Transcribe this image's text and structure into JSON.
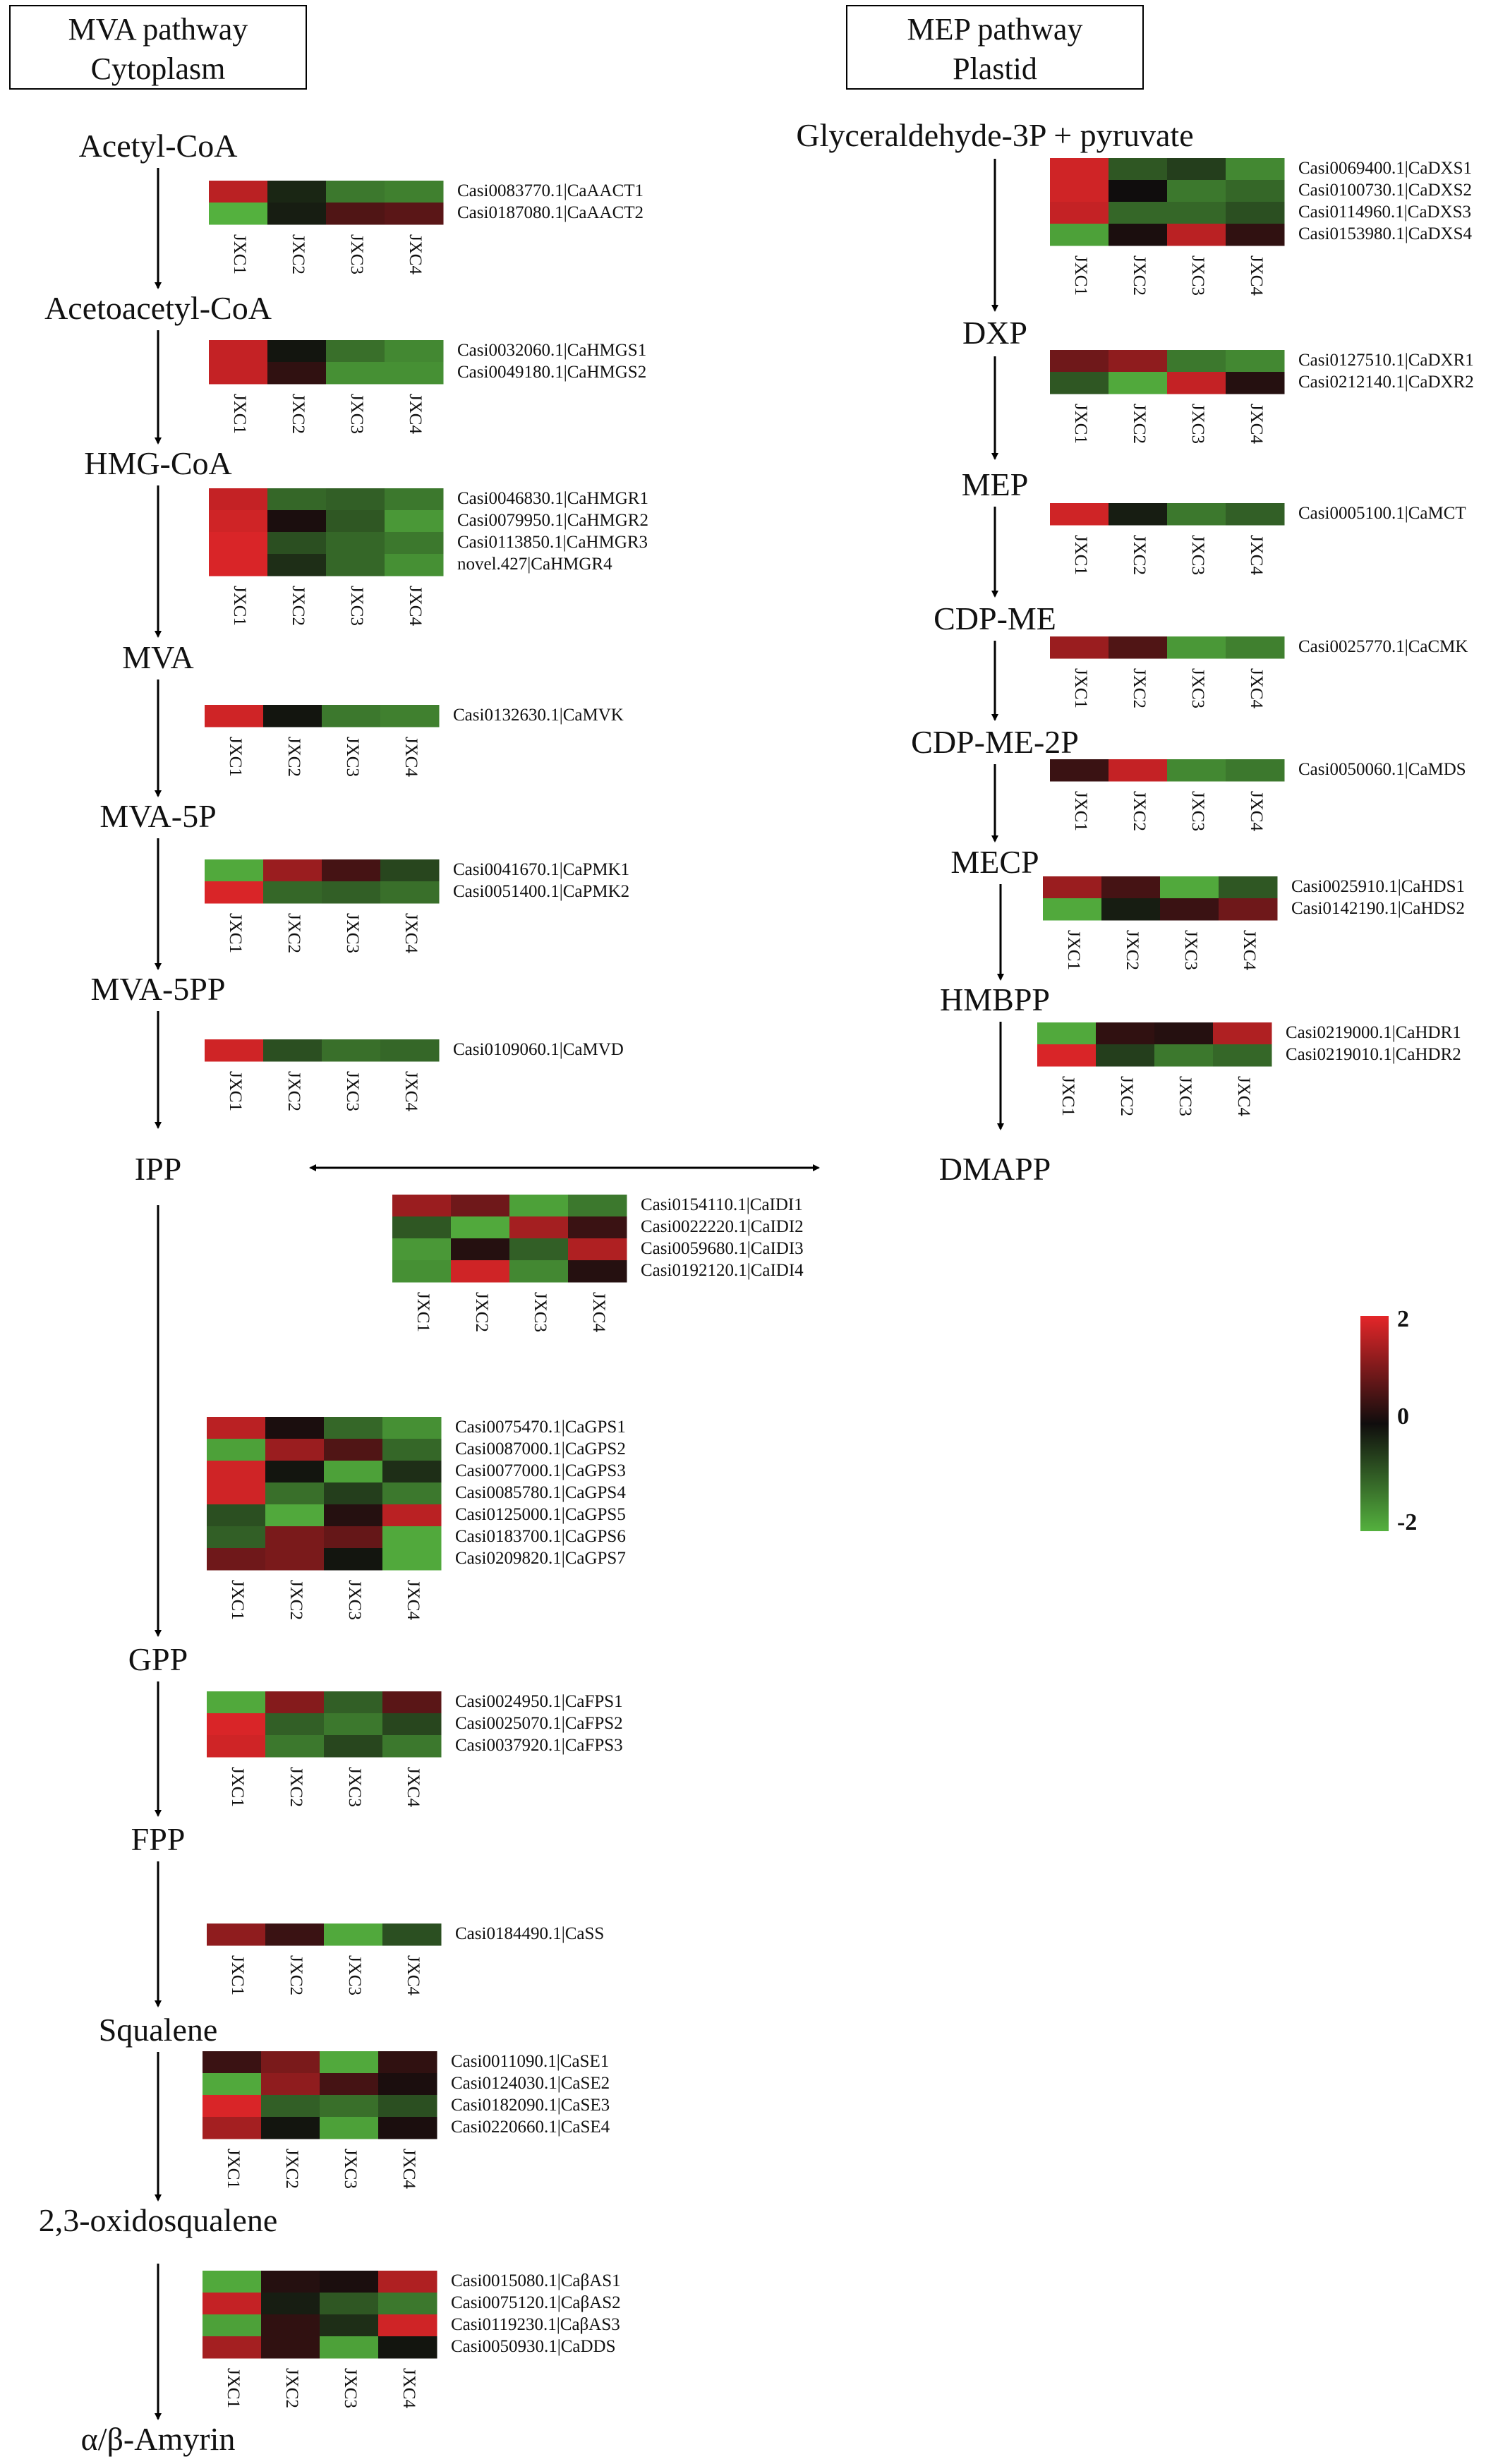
{
  "headers": {
    "mva": {
      "line1": "MVA pathway",
      "line2": "Cytoplasm"
    },
    "mep": {
      "line1": "MEP pathway",
      "line2": "Plastid"
    }
  },
  "samples": [
    "JXC1",
    "JXC2",
    "JXC3",
    "JXC4"
  ],
  "legend": {
    "max": "2",
    "mid": "0",
    "min": "-2"
  },
  "colors": {
    "high": "#e42629",
    "mid": "#100d0d",
    "low": "#54b13e",
    "arrow": "#000000"
  },
  "mva_metabolites": [
    "Acetyl-CoA",
    "Acetoacetyl-CoA",
    "HMG-CoA",
    "MVA",
    "MVA-5P",
    "MVA-5PP",
    "IPP",
    "GPP",
    "FPP",
    "Squalene",
    "2,3-oxidosqualene",
    "α/β-Amyrin"
  ],
  "mep_metabolites": [
    "Glyceraldehyde-3P + pyruvate",
    "DXP",
    "MEP",
    "CDP-ME",
    "CDP-ME-2P",
    "MECP",
    "HMBPP",
    "DMAPP"
  ],
  "heatmaps": [
    {
      "id": "aact",
      "genes": [
        "Casi0083770.1|CaAACT1",
        "Casi0187080.1|CaAACT2"
      ],
      "values": [
        [
          1.6,
          -0.3,
          -1.3,
          -1.4
        ],
        [
          -2.0,
          -0.2,
          0.6,
          0.7
        ]
      ]
    },
    {
      "id": "hmgs",
      "genes": [
        "Casi0032060.1|CaHMGS1",
        "Casi0049180.1|CaHMGS2"
      ],
      "values": [
        [
          1.7,
          -0.1,
          -1.2,
          -1.5
        ],
        [
          1.7,
          0.3,
          -1.6,
          -1.6
        ]
      ]
    },
    {
      "id": "hmgr",
      "genes": [
        "Casi0046830.1|CaHMGR1",
        "Casi0079950.1|CaHMGR2",
        "Casi0113850.1|CaHMGR3",
        "novel.427|CaHMGR4"
      ],
      "values": [
        [
          1.7,
          -1.1,
          -1.0,
          -1.3
        ],
        [
          1.8,
          0.1,
          -0.9,
          -1.7
        ],
        [
          1.9,
          -0.8,
          -1.1,
          -1.3
        ],
        [
          1.9,
          -0.4,
          -1.1,
          -1.6
        ]
      ]
    },
    {
      "id": "mvk",
      "genes": [
        "Casi0132630.1|CaMVK"
      ],
      "values": [
        [
          1.8,
          -0.1,
          -1.3,
          -1.4
        ]
      ]
    },
    {
      "id": "pmk",
      "genes": [
        "Casi0041670.1|CaPMK1",
        "Casi0051400.1|CaPMK2"
      ],
      "values": [
        [
          -1.9,
          1.3,
          0.5,
          -0.7
        ],
        [
          1.9,
          -1.1,
          -1.0,
          -1.2
        ]
      ]
    },
    {
      "id": "mvd",
      "genes": [
        "Casi0109060.1|CaMVD"
      ],
      "values": [
        [
          1.8,
          -0.8,
          -1.2,
          -1.1
        ]
      ]
    },
    {
      "id": "idi",
      "genes": [
        "Casi0154110.1|CaIDI1",
        "Casi0022220.1|CaIDI2",
        "Casi0059680.1|CaIDI3",
        "Casi0192120.1|CaIDI4"
      ],
      "values": [
        [
          1.3,
          0.9,
          -1.8,
          -1.3
        ],
        [
          -0.9,
          -1.9,
          1.4,
          0.4
        ],
        [
          -1.7,
          0.2,
          -1.0,
          1.5
        ],
        [
          -1.6,
          1.8,
          -1.5,
          0.2
        ]
      ]
    },
    {
      "id": "gps",
      "genes": [
        "Casi0075470.1|CaGPS1",
        "Casi0087000.1|CaGPS2",
        "Casi0077000.1|CaGPS3",
        "Casi0085780.1|CaGPS4",
        "Casi0125000.1|CaGPS5",
        "Casi0183700.1|CaGPS6",
        "Casi0209820.1|CaGPS7"
      ],
      "values": [
        [
          1.6,
          0.1,
          -1.1,
          -1.6
        ],
        [
          -1.8,
          1.3,
          0.6,
          -1.1
        ],
        [
          1.8,
          -0.1,
          -1.8,
          -0.4
        ],
        [
          1.8,
          -1.2,
          -0.6,
          -1.3
        ],
        [
          -0.8,
          -1.9,
          0.2,
          1.6
        ],
        [
          -1.0,
          1.0,
          0.8,
          -1.9
        ],
        [
          0.9,
          1.0,
          -0.1,
          -1.9
        ]
      ]
    },
    {
      "id": "fps",
      "genes": [
        "Casi0024950.1|CaFPS1",
        "Casi0025070.1|CaFPS2",
        "Casi0037920.1|CaFPS3"
      ],
      "values": [
        [
          -1.9,
          1.1,
          -1.0,
          0.7
        ],
        [
          1.9,
          -1.0,
          -1.3,
          -0.7
        ],
        [
          1.8,
          -1.3,
          -0.7,
          -1.3
        ]
      ]
    },
    {
      "id": "ss",
      "genes": [
        "Casi0184490.1|CaSS"
      ],
      "values": [
        [
          1.2,
          0.4,
          -1.9,
          -0.8
        ]
      ]
    },
    {
      "id": "se",
      "genes": [
        "Casi0011090.1|CaSE1",
        "Casi0124030.1|CaSE2",
        "Casi0182090.1|CaSE3",
        "Casi0220660.1|CaSE4"
      ],
      "values": [
        [
          0.4,
          1.0,
          -1.9,
          0.3
        ],
        [
          -1.9,
          1.2,
          0.5,
          0.1
        ],
        [
          1.9,
          -1.0,
          -1.2,
          -0.8
        ],
        [
          1.4,
          -0.1,
          -1.8,
          0.1
        ]
      ]
    },
    {
      "id": "as",
      "genes": [
        "Casi0015080.1|CaβAS1",
        "Casi0075120.1|CaβAS2",
        "Casi0119230.1|CaβAS3",
        "Casi0050930.1|CaDDS"
      ],
      "values": [
        [
          -1.9,
          0.2,
          0.1,
          1.5
        ],
        [
          1.7,
          -0.2,
          -0.9,
          -1.3
        ],
        [
          -1.8,
          0.3,
          -0.4,
          1.8
        ],
        [
          1.4,
          0.3,
          -1.8,
          -0.1
        ]
      ]
    },
    {
      "id": "dxs",
      "genes": [
        "Casi0069400.1|CaDXS1",
        "Casi0100730.1|CaDXS2",
        "Casi0114960.1|CaDXS3",
        "Casi0153980.1|CaDXS4"
      ],
      "values": [
        [
          1.8,
          -0.9,
          -0.6,
          -1.5
        ],
        [
          1.8,
          0.0,
          -1.3,
          -1.1
        ],
        [
          1.7,
          -1.1,
          -1.1,
          -0.8
        ],
        [
          -1.8,
          0.1,
          1.6,
          0.3
        ]
      ]
    },
    {
      "id": "dxr",
      "genes": [
        "Casi0127510.1|CaDXR1",
        "Casi0212140.1|CaDXR2"
      ],
      "values": [
        [
          0.9,
          1.2,
          -1.3,
          -1.5
        ],
        [
          -0.9,
          -1.9,
          1.7,
          0.2
        ]
      ]
    },
    {
      "id": "mct",
      "genes": [
        "Casi0005100.1|CaMCT"
      ],
      "values": [
        [
          1.8,
          -0.2,
          -1.3,
          -1.0
        ]
      ]
    },
    {
      "id": "cmk",
      "genes": [
        "Casi0025770.1|CaCMK"
      ],
      "values": [
        [
          1.3,
          0.6,
          -1.7,
          -1.4
        ]
      ]
    },
    {
      "id": "mds",
      "genes": [
        "Casi0050060.1|CaMDS"
      ],
      "values": [
        [
          0.4,
          1.7,
          -1.5,
          -1.3
        ]
      ]
    },
    {
      "id": "hds",
      "genes": [
        "Casi0025910.1|CaHDS1",
        "Casi0142190.1|CaHDS2"
      ],
      "values": [
        [
          1.3,
          0.5,
          -1.9,
          -0.9
        ],
        [
          -1.9,
          -0.2,
          0.4,
          0.9
        ]
      ]
    },
    {
      "id": "hdr",
      "genes": [
        "Casi0219000.1|CaHDR1",
        "Casi0219010.1|CaHDR2"
      ],
      "values": [
        [
          -1.9,
          0.3,
          0.2,
          1.5
        ],
        [
          1.9,
          -0.6,
          -1.3,
          -1.1
        ]
      ]
    }
  ]
}
